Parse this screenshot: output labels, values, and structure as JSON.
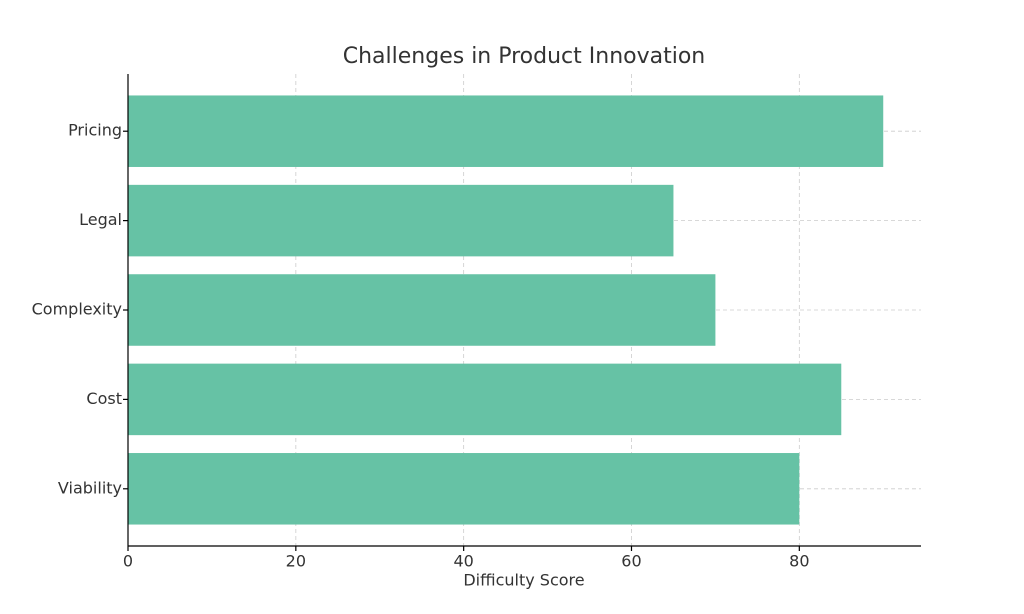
{
  "chart_data": {
    "type": "barh",
    "title": "Challenges in Product Innovation",
    "x_label": "Difficulty Score",
    "categories": [
      "Viability",
      "Cost",
      "Complexity",
      "Legal",
      "Pricing"
    ],
    "values": [
      80,
      85,
      70,
      65,
      90
    ],
    "color": "#66c2a5",
    "xlim": [
      0,
      94.5
    ],
    "xticks": [
      0,
      20,
      40,
      60,
      80
    ],
    "grid": true
  }
}
